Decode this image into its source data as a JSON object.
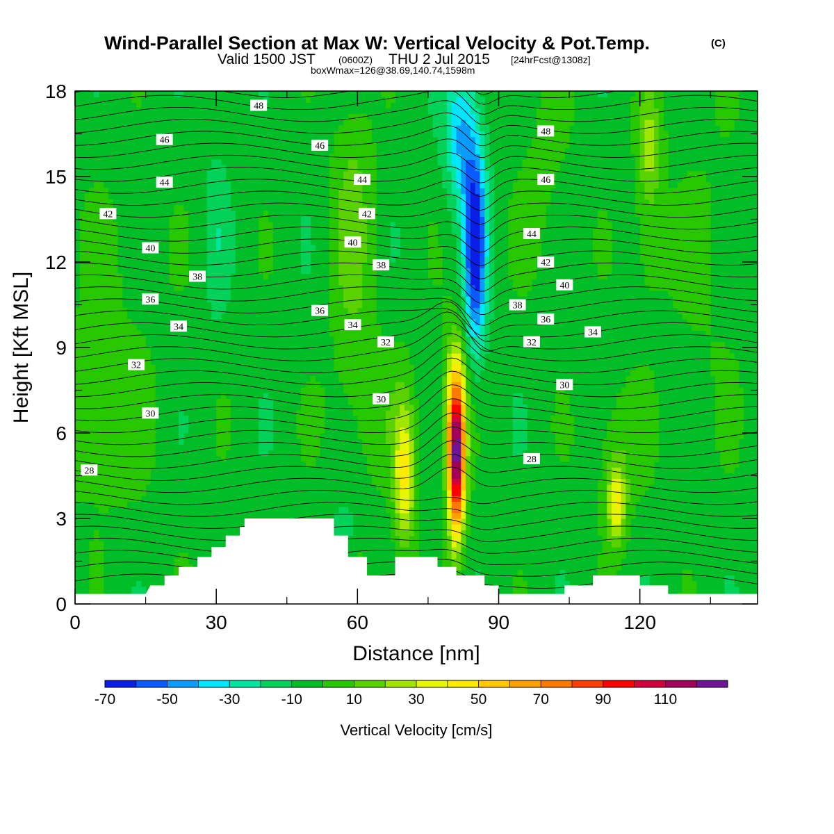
{
  "title": {
    "main": "Wind-Parallel Section at Max W: Vertical Velocity & Pot.Temp.",
    "copyright": "(C)",
    "valid_prefix": "Valid 1500 JST",
    "valid_z": "(0600Z)",
    "valid_date": "THU 2 Jul 2015",
    "fcst": "[24hrFcst@1308z]",
    "boxline": "boxWmax=126@38.69,140.74,1598m"
  },
  "chart_data": {
    "type": "heatmap",
    "xlabel": "Distance [nm]",
    "ylabel": "Height [Kft MSL]",
    "xlim": [
      0,
      145
    ],
    "ylim": [
      0,
      18
    ],
    "x_ticks": [
      "0",
      "30",
      "60",
      "90",
      "120"
    ],
    "y_ticks": [
      "0",
      "3",
      "6",
      "9",
      "12",
      "15",
      "18"
    ],
    "colorbar": {
      "title": "Vertical Velocity [cm/s]",
      "labels": [
        "-70",
        "-50",
        "-30",
        "-10",
        "10",
        "30",
        "50",
        "70",
        "90",
        "110"
      ],
      "levels": [
        -70,
        -60,
        -50,
        -40,
        -30,
        -20,
        -10,
        0,
        10,
        20,
        30,
        40,
        50,
        60,
        70,
        80,
        90,
        100,
        110,
        120
      ],
      "colors": [
        "#0a1ee6",
        "#0a5aff",
        "#0a9bff",
        "#00e6ff",
        "#00e6a0",
        "#00d25a",
        "#00be28",
        "#28c800",
        "#5ad200",
        "#a0e600",
        "#e6f500",
        "#ffeb00",
        "#ffc800",
        "#ffa000",
        "#ff7800",
        "#ff3c00",
        "#ff0000",
        "#d2003c",
        "#a0005a",
        "#6e1496"
      ]
    },
    "features": [
      {
        "kind": "updraft",
        "x": 81,
        "y": 5.2,
        "value": 126
      },
      {
        "kind": "updraft",
        "x": 70,
        "y": 4.5,
        "value": 45
      },
      {
        "kind": "updraft",
        "x": 115,
        "y": 3.5,
        "value": 40
      },
      {
        "kind": "updraft",
        "x": 122,
        "y": 16,
        "value": 28
      },
      {
        "kind": "downdraft",
        "x": 85,
        "y": 12.5,
        "value": -62
      }
    ],
    "theta_labels": [
      {
        "v": "48",
        "x": 39,
        "y": 17.5
      },
      {
        "v": "46",
        "x": 19,
        "y": 16.3
      },
      {
        "v": "44",
        "x": 19,
        "y": 14.8
      },
      {
        "v": "42",
        "x": 7,
        "y": 13.7
      },
      {
        "v": "40",
        "x": 16,
        "y": 12.5
      },
      {
        "v": "38",
        "x": 26,
        "y": 11.5
      },
      {
        "v": "36",
        "x": 16,
        "y": 10.7
      },
      {
        "v": "34",
        "x": 22,
        "y": 9.75
      },
      {
        "v": "32",
        "x": 13,
        "y": 8.4
      },
      {
        "v": "30",
        "x": 16,
        "y": 6.7
      },
      {
        "v": "28",
        "x": 3,
        "y": 4.7
      },
      {
        "v": "46",
        "x": 52,
        "y": 16.1
      },
      {
        "v": "44",
        "x": 61,
        "y": 14.9
      },
      {
        "v": "42",
        "x": 62,
        "y": 13.7
      },
      {
        "v": "40",
        "x": 59,
        "y": 12.7
      },
      {
        "v": "38",
        "x": 65,
        "y": 11.9
      },
      {
        "v": "36",
        "x": 52,
        "y": 10.3
      },
      {
        "v": "34",
        "x": 59,
        "y": 9.8
      },
      {
        "v": "32",
        "x": 66,
        "y": 9.2
      },
      {
        "v": "30",
        "x": 65,
        "y": 7.2
      },
      {
        "v": "48",
        "x": 100,
        "y": 16.6
      },
      {
        "v": "46",
        "x": 100,
        "y": 14.9
      },
      {
        "v": "44",
        "x": 97,
        "y": 13.0
      },
      {
        "v": "42",
        "x": 100,
        "y": 12.0
      },
      {
        "v": "40",
        "x": 104,
        "y": 11.2
      },
      {
        "v": "38",
        "x": 94,
        "y": 10.5
      },
      {
        "v": "36",
        "x": 100,
        "y": 10.0
      },
      {
        "v": "34",
        "x": 110,
        "y": 9.55
      },
      {
        "v": "32",
        "x": 97,
        "y": 9.2
      },
      {
        "v": "30",
        "x": 104,
        "y": 7.7
      },
      {
        "v": "28",
        "x": 97,
        "y": 5.1
      }
    ],
    "terrain": [
      [
        0,
        0.35
      ],
      [
        15,
        0.35
      ],
      [
        16,
        0.65
      ],
      [
        19,
        0.65
      ],
      [
        19,
        1.0
      ],
      [
        22,
        1.0
      ],
      [
        22,
        1.3
      ],
      [
        26,
        1.3
      ],
      [
        26,
        1.65
      ],
      [
        29,
        1.65
      ],
      [
        29,
        2.0
      ],
      [
        32,
        2.0
      ],
      [
        32,
        2.4
      ],
      [
        35,
        2.4
      ],
      [
        35,
        2.7
      ],
      [
        36,
        2.7
      ],
      [
        36,
        3.0
      ],
      [
        55,
        3.0
      ],
      [
        55,
        2.4
      ],
      [
        58,
        2.4
      ],
      [
        58,
        1.65
      ],
      [
        62,
        1.65
      ],
      [
        62,
        1.0
      ],
      [
        68,
        1.0
      ],
      [
        68,
        1.65
      ],
      [
        77,
        1.65
      ],
      [
        77,
        1.3
      ],
      [
        81,
        1.3
      ],
      [
        81,
        1.0
      ],
      [
        87,
        1.0
      ],
      [
        87,
        0.65
      ],
      [
        90,
        0.65
      ],
      [
        90,
        0.35
      ],
      [
        104,
        0.35
      ],
      [
        104,
        0.65
      ],
      [
        110,
        0.65
      ],
      [
        110,
        1.0
      ],
      [
        120,
        1.0
      ],
      [
        120,
        0.65
      ],
      [
        126,
        0.65
      ],
      [
        126,
        0.35
      ],
      [
        145,
        0.35
      ]
    ]
  }
}
